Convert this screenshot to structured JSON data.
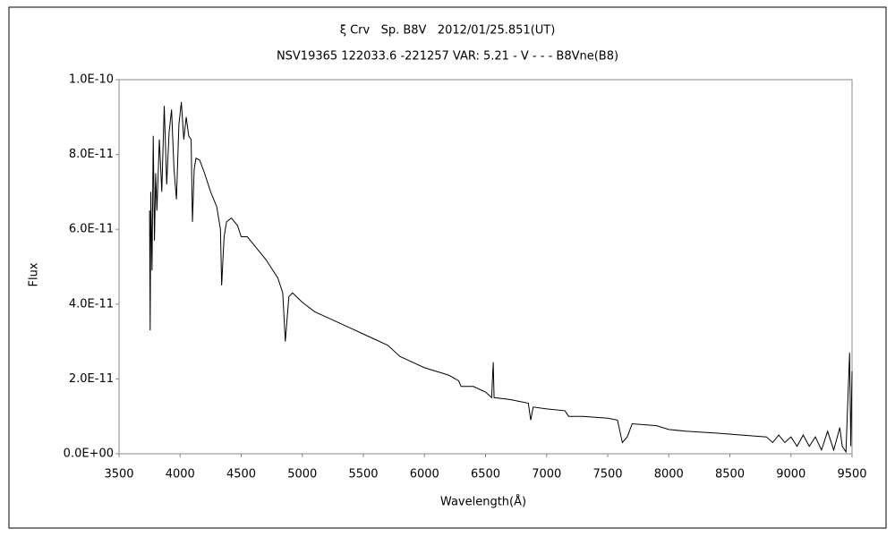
{
  "chart_data": {
    "type": "line",
    "title": "ξ Crv   Sp. B8V   2012/01/25.851(UT)",
    "subtitle": "NSV19365 122033.6 -221257 VAR: 5.21 - V - - - B8Vne(B8)",
    "xlabel": "Wavelength(Å)",
    "ylabel": "Flux",
    "xlim": [
      3500,
      9500
    ],
    "xticks": [
      3500,
      4000,
      4500,
      5000,
      5500,
      6000,
      6500,
      7000,
      7500,
      8000,
      8500,
      9000,
      9500
    ],
    "ylim": [
      0,
      1e-10
    ],
    "yticks": [
      {
        "value": 0,
        "label": "0.0E+00"
      },
      {
        "value": 2e-11,
        "label": "2.0E-11"
      },
      {
        "value": 4e-11,
        "label": "4.0E-11"
      },
      {
        "value": 6e-11,
        "label": "6.0E-11"
      },
      {
        "value": 8e-11,
        "label": "8.0E-11"
      },
      {
        "value": 1e-10,
        "label": "1.0E-10"
      }
    ],
    "grid": false,
    "x": [
      3750,
      3755,
      3760,
      3770,
      3780,
      3790,
      3800,
      3810,
      3830,
      3850,
      3870,
      3890,
      3910,
      3930,
      3950,
      3970,
      3990,
      4010,
      4030,
      4050,
      4070,
      4090,
      4101,
      4115,
      4130,
      4160,
      4200,
      4250,
      4300,
      4330,
      4340,
      4360,
      4380,
      4420,
      4470,
      4500,
      4550,
      4600,
      4700,
      4800,
      4840,
      4861,
      4890,
      4920,
      5000,
      5100,
      5200,
      5300,
      5400,
      5500,
      5600,
      5700,
      5800,
      5900,
      6000,
      6100,
      6200,
      6280,
      6300,
      6400,
      6500,
      6550,
      6563,
      6570,
      6700,
      6850,
      6870,
      6890,
      7000,
      7150,
      7180,
      7300,
      7500,
      7580,
      7620,
      7660,
      7700,
      7900,
      8000,
      8150,
      8400,
      8600,
      8800,
      8850,
      8900,
      8950,
      9000,
      9050,
      9100,
      9150,
      9200,
      9250,
      9300,
      9350,
      9400,
      9420,
      9450,
      9480,
      9490,
      9500
    ],
    "series": [
      {
        "color": "#000000",
        "values": [
          6.5e-11,
          3.3e-11,
          7e-11,
          4.9e-11,
          8.5e-11,
          5.7e-11,
          7.5e-11,
          6.5e-11,
          8.4e-11,
          7e-11,
          9.3e-11,
          7.2e-11,
          8.6e-11,
          9.2e-11,
          7.6e-11,
          6.8e-11,
          8.8e-11,
          9.4e-11,
          8.4e-11,
          9e-11,
          8.5e-11,
          8.4e-11,
          6.2e-11,
          7.6e-11,
          7.9e-11,
          7.85e-11,
          7.5e-11,
          7e-11,
          6.6e-11,
          6e-11,
          4.5e-11,
          5.8e-11,
          6.2e-11,
          6.3e-11,
          6.1e-11,
          5.8e-11,
          5.8e-11,
          5.6e-11,
          5.2e-11,
          4.7e-11,
          4.3e-11,
          3e-11,
          4.2e-11,
          4.3e-11,
          4.05e-11,
          3.8e-11,
          3.65e-11,
          3.5e-11,
          3.35e-11,
          3.2e-11,
          3.05e-11,
          2.9e-11,
          2.6e-11,
          2.45e-11,
          2.3e-11,
          2.2e-11,
          2.1e-11,
          1.95e-11,
          1.8e-11,
          1.8e-11,
          1.65e-11,
          1.5e-11,
          2.45e-11,
          1.5e-11,
          1.45e-11,
          1.35e-11,
          9e-12,
          1.25e-11,
          1.2e-11,
          1.15e-11,
          1e-11,
          1e-11,
          9.5e-12,
          9e-12,
          3e-12,
          4.5e-12,
          8e-12,
          7.5e-12,
          6.5e-12,
          6e-12,
          5.5e-12,
          5e-12,
          4.5e-12,
          3e-12,
          5e-12,
          3e-12,
          4.5e-12,
          2e-12,
          5e-12,
          2e-12,
          4.5e-12,
          1e-12,
          6e-12,
          1e-12,
          7e-12,
          2e-12,
          5e-13,
          2.7e-11,
          2e-12,
          2.2e-11
        ]
      }
    ]
  }
}
